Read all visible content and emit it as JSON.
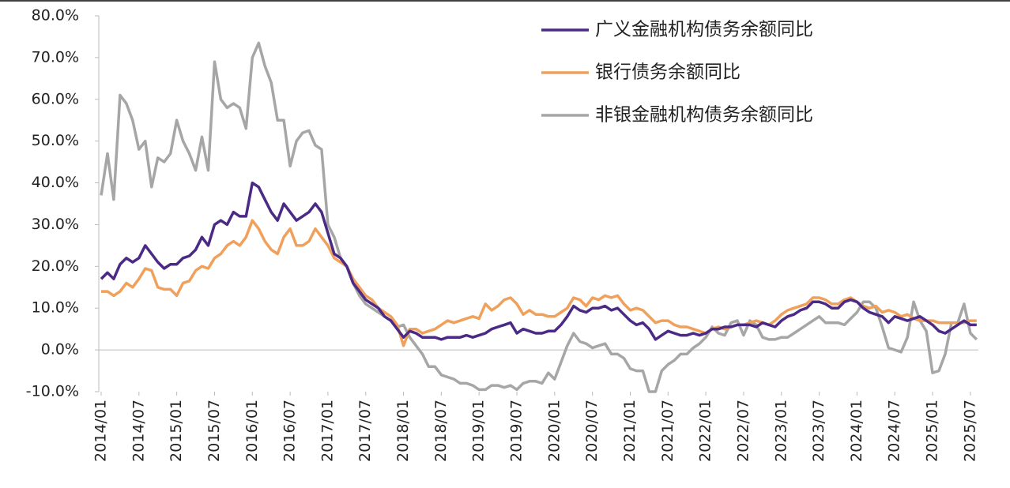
{
  "chart_data": {
    "type": "line",
    "categories": [
      "2014/01",
      null,
      null,
      null,
      null,
      null,
      "2014/07",
      null,
      null,
      null,
      null,
      null,
      "2015/01",
      null,
      null,
      null,
      null,
      null,
      "2015/07",
      null,
      null,
      null,
      null,
      null,
      "2016/01",
      null,
      null,
      null,
      null,
      null,
      "2016/07",
      null,
      null,
      null,
      null,
      null,
      "2017/01",
      null,
      null,
      null,
      null,
      null,
      "2017/07",
      null,
      null,
      null,
      null,
      null,
      "2018/01",
      null,
      null,
      null,
      null,
      null,
      "2018/07",
      null,
      null,
      null,
      null,
      null,
      "2019/01",
      null,
      null,
      null,
      null,
      null,
      "2019/07",
      null,
      null,
      null,
      null,
      null,
      "2020/01",
      null,
      null,
      null,
      null,
      null,
      "2020/07",
      null,
      null,
      null,
      null,
      null,
      "2021/01",
      null,
      null,
      null,
      null,
      null,
      "2021/07",
      null,
      null,
      null,
      null,
      null,
      "2022/01",
      null,
      null,
      null,
      null,
      null,
      "2022/07",
      null,
      null,
      null,
      null,
      null,
      "2023/01",
      null,
      null,
      null,
      null,
      null,
      "2023/07",
      null,
      null,
      null,
      null,
      null,
      "2024/01",
      null,
      null,
      null,
      null,
      null,
      "2024/07",
      null,
      null,
      null,
      null,
      null,
      "2025/01",
      null,
      null,
      null,
      null,
      null,
      "2025/07",
      null
    ],
    "series": [
      {
        "name": "广义金融机构债务余额同比",
        "color": "#4b2a85",
        "values": [
          17,
          18.5,
          17,
          20.5,
          22,
          21,
          22,
          25,
          23,
          21,
          19.5,
          20.5,
          20.5,
          22,
          22.5,
          24,
          27,
          25,
          30,
          31,
          30,
          33,
          32,
          32,
          40,
          39,
          36,
          33,
          31,
          35,
          33,
          31,
          32,
          33,
          35,
          33,
          28,
          23,
          22,
          20,
          16,
          14,
          12,
          11,
          10,
          8,
          7,
          5,
          3,
          4.5,
          4,
          3,
          3,
          3,
          2.5,
          3,
          3,
          3,
          3.5,
          3,
          3.5,
          4,
          5,
          5.5,
          6,
          6.5,
          4,
          5,
          4.5,
          4,
          4,
          4.5,
          4.5,
          6,
          8,
          10.5,
          9.5,
          9,
          10,
          10,
          10.5,
          9.5,
          10,
          8.5,
          7,
          6,
          6.5,
          5,
          2.5,
          3.5,
          4.5,
          4,
          3.5,
          3.5,
          4,
          3.5,
          4,
          5,
          5,
          5.5,
          5.5,
          6,
          6,
          6,
          5.5,
          6.5,
          6,
          5.5,
          7,
          8,
          8.5,
          9.5,
          10,
          11.5,
          11.5,
          11,
          10,
          10,
          11.5,
          12,
          11.5,
          10,
          9,
          8.5,
          8,
          6.5,
          8,
          7.5,
          7,
          7.5,
          8,
          7,
          6,
          4.5,
          4,
          5,
          6,
          7,
          6,
          6
        ]
      },
      {
        "name": "银行债务余额同比",
        "color": "#f0a05a",
        "values": [
          14,
          14,
          13,
          14,
          16,
          15,
          17,
          19.5,
          19,
          15,
          14.5,
          14.5,
          13,
          16,
          16.5,
          19,
          20,
          19.5,
          22,
          23,
          25,
          26,
          25,
          27,
          31,
          29,
          26,
          24,
          23,
          27,
          29,
          25,
          25,
          26,
          29,
          27,
          25,
          22,
          21,
          20,
          17,
          15,
          13,
          12,
          10,
          9,
          8,
          6,
          1,
          5,
          5,
          4,
          4.5,
          5,
          6,
          7,
          6.5,
          7,
          7.5,
          8,
          7.5,
          11,
          9.5,
          10.5,
          12,
          12.5,
          11,
          8.5,
          9.5,
          8.5,
          8.5,
          8,
          8,
          9,
          10,
          12.5,
          12,
          10.5,
          12.5,
          12,
          13,
          12.5,
          13,
          11,
          9.5,
          10,
          9.5,
          8,
          6.5,
          7,
          7,
          6,
          5.5,
          5.5,
          5,
          4.5,
          4,
          5,
          5.5,
          5,
          5.5,
          6,
          6,
          6.5,
          7,
          6.5,
          6,
          7,
          8.5,
          9.5,
          10,
          10.5,
          11,
          12.5,
          12.5,
          12,
          11,
          11,
          12,
          12.5,
          11.5,
          10.5,
          10,
          10.5,
          9,
          9.5,
          9,
          8,
          8.5,
          7.5,
          7,
          7,
          7,
          6.5,
          6.5,
          6.5,
          6.5,
          6.5,
          7,
          7
        ]
      },
      {
        "name": "非银金融机构债务余额同比",
        "color": "#a6a6a6",
        "values": [
          37,
          47,
          36,
          61,
          59,
          55,
          48,
          50,
          39,
          46,
          45,
          47,
          55,
          50,
          47,
          43,
          51,
          43,
          69,
          60,
          58,
          59,
          58,
          53,
          70,
          73.5,
          68,
          64,
          55,
          55,
          44,
          50,
          52,
          52.5,
          49,
          48,
          30,
          27,
          22,
          20,
          16,
          13,
          11,
          10,
          9,
          8,
          7,
          5.5,
          6,
          3,
          1,
          -1,
          -4,
          -4,
          -6,
          -6.5,
          -7,
          -8,
          -8,
          -8.5,
          -9.5,
          -9.5,
          -8.5,
          -8.5,
          -9,
          -8.5,
          -9.5,
          -8,
          -7.5,
          -7.5,
          -8,
          -5.5,
          -7,
          -3,
          1,
          4,
          2,
          1.5,
          0.5,
          1,
          1.5,
          -1,
          -1,
          -2,
          -4.5,
          -5,
          -5,
          -10,
          -10,
          -5,
          -3.5,
          -2.5,
          -1,
          -1,
          0.5,
          1.5,
          3,
          5.5,
          4,
          3.5,
          6.5,
          7,
          3.5,
          7,
          6,
          3,
          2.5,
          2.5,
          3,
          3,
          4,
          5,
          6,
          7,
          8,
          6.5,
          6.5,
          6.5,
          6,
          7.5,
          9,
          11.5,
          11.5,
          10,
          5.5,
          0.5,
          0,
          -0.5,
          3,
          11.5,
          7,
          4.5,
          -5.5,
          -5,
          -1,
          6.5,
          6.5,
          11,
          4,
          2.5
        ]
      }
    ],
    "ylim": [
      -10,
      80
    ],
    "yticks": [
      {
        "value": -10,
        "label": "-10.0%"
      },
      {
        "value": 0,
        "label": "0.0%"
      },
      {
        "value": 10,
        "label": "10.0%"
      },
      {
        "value": 20,
        "label": "20.0%"
      },
      {
        "value": 30,
        "label": "30.0%"
      },
      {
        "value": 40,
        "label": "40.0%"
      },
      {
        "value": 50,
        "label": "50.0%"
      },
      {
        "value": 60,
        "label": "60.0%"
      },
      {
        "value": 70,
        "label": "70.0%"
      },
      {
        "value": 80,
        "label": "80.0%"
      }
    ],
    "legend": "top-right"
  }
}
